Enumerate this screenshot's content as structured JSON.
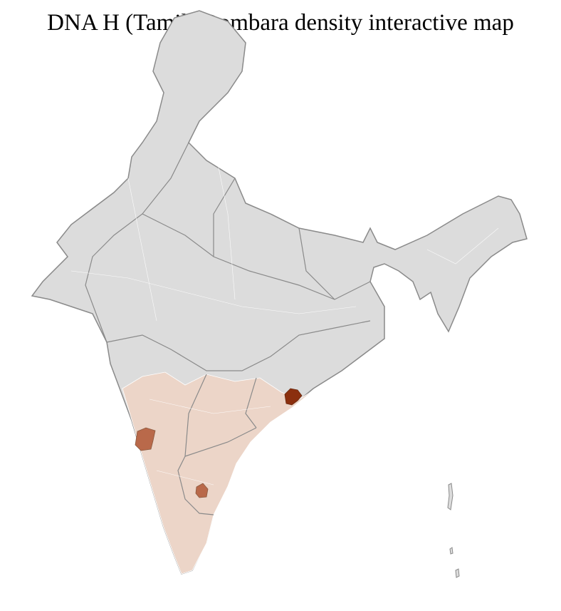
{
  "title": "DNA H (Tamil) Dombara density interactive map",
  "colors": {
    "no_data": "#dcdcdc",
    "low": "#ecd5c8",
    "medium": "#b9694a",
    "high": "#8b2f0e",
    "state_border": "#8a8a8a",
    "district_border": "#ffffff"
  },
  "regions": [
    {
      "level": "low",
      "label": "southern states"
    },
    {
      "level": "medium",
      "label": "western district"
    },
    {
      "level": "medium",
      "label": "southern district"
    },
    {
      "level": "high",
      "label": "eastern coastal district"
    }
  ]
}
